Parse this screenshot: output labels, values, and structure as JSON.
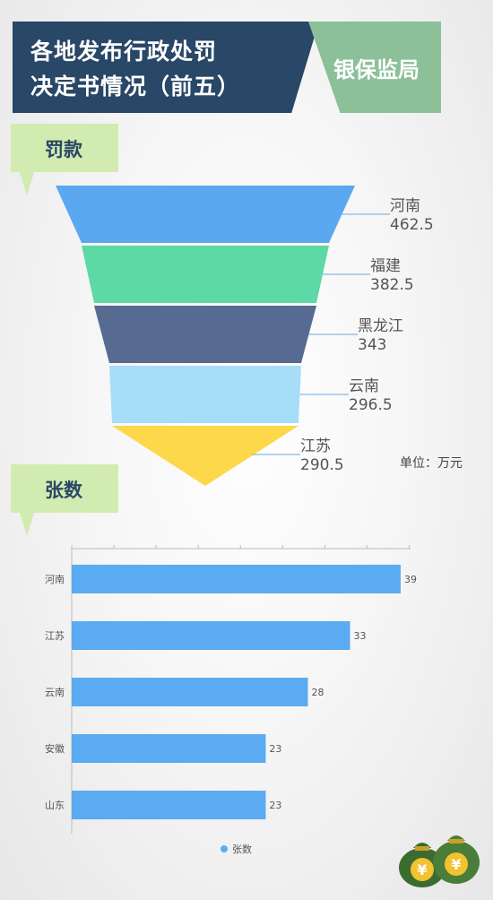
{
  "header": {
    "title_line1": "各地发布行政处罚",
    "title_line2": "决定书情况（前五）",
    "tag": "银保监局"
  },
  "sections": {
    "fines_label": "罚款",
    "count_label": "张数",
    "unit_note": "单位：万元"
  },
  "colors": {
    "header_bg": "#294766",
    "tag_bg": "#8cc098",
    "label_bg": "#d2ebb0",
    "bar": "#5aabf1"
  },
  "icons": {
    "decor": "money-bags-icon"
  },
  "chart_data": [
    {
      "type": "funnel",
      "title": "罚款",
      "unit": "单位：万元",
      "categories": [
        "河南",
        "福建",
        "黑龙江",
        "云南",
        "江苏"
      ],
      "values": [
        462.5,
        382.5,
        343,
        296.5,
        290.5
      ],
      "value_labels": [
        "462.5",
        "382.5",
        "343",
        "296.5",
        "290.5"
      ],
      "colors": [
        "#5aa8f0",
        "#5dd9a6",
        "#566a92",
        "#a8ddf7",
        "#fcd84a"
      ]
    },
    {
      "type": "bar",
      "orientation": "horizontal",
      "title": "张数",
      "categories": [
        "河南",
        "江苏",
        "云南",
        "安徽",
        "山东"
      ],
      "series": [
        {
          "name": "张数",
          "values": [
            39,
            33,
            28,
            23,
            23
          ]
        }
      ],
      "value_labels": [
        "39",
        "33",
        "28",
        "23",
        "23"
      ],
      "xlim": [
        0,
        40
      ],
      "grid": false,
      "legend": "bottom-center"
    }
  ]
}
